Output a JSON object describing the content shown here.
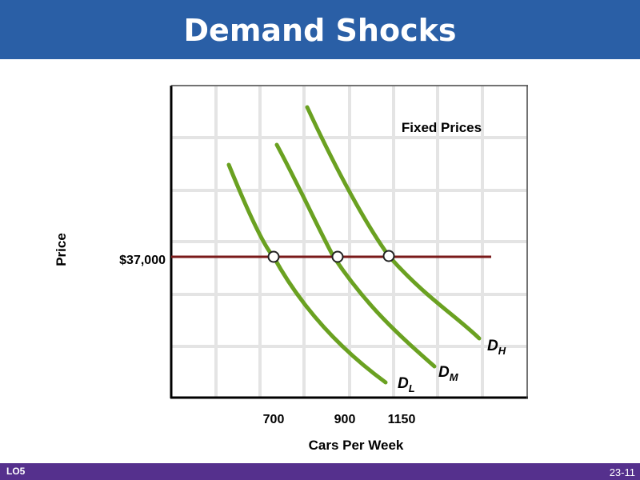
{
  "slide": {
    "title": "Demand Shocks",
    "lo": "LO5",
    "page": "23-11"
  },
  "colors": {
    "header": "#2a5fa6",
    "footer": "#55308d",
    "demand_curve": "#6aa121",
    "price_line": "#7a1a1a",
    "grid": "#e4e4e4"
  },
  "chart_data": {
    "type": "line",
    "xlabel": "Cars Per Week",
    "ylabel": "Price",
    "annotation": "Fixed Prices",
    "price_label": "$37,000",
    "x_ticks": [
      "700",
      "900",
      "1150"
    ],
    "grid": true,
    "series": [
      {
        "name": "D",
        "sub": "L",
        "shock_quantity": 700
      },
      {
        "name": "D",
        "sub": "M",
        "shock_quantity": 900
      },
      {
        "name": "D",
        "sub": "H",
        "shock_quantity": 1150
      }
    ]
  }
}
